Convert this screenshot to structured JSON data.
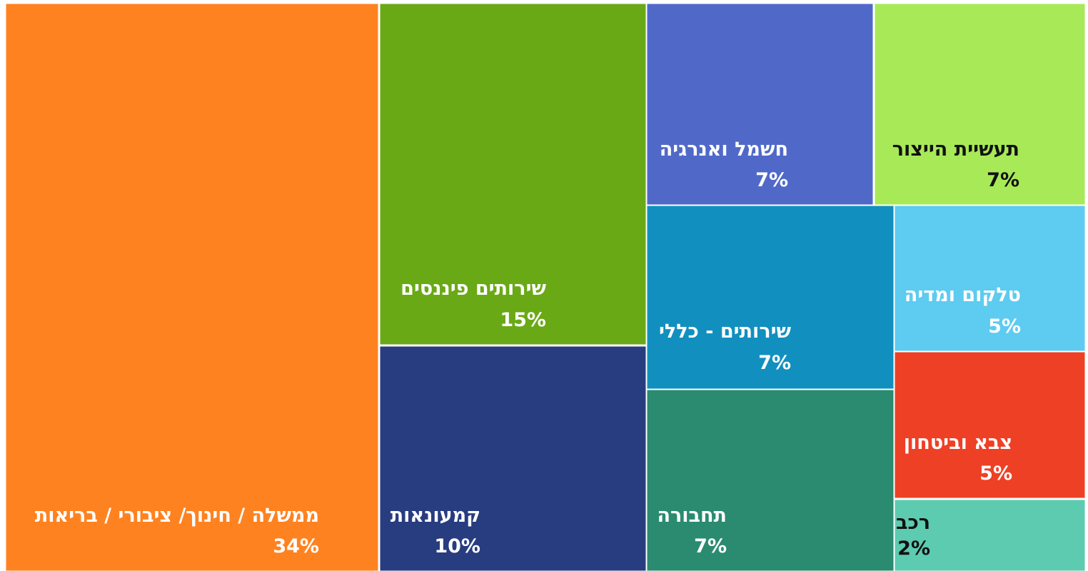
{
  "chart_data": {
    "type": "treemap",
    "categories": [
      "ממשלה / חינוך/ ציבורי / בריאות",
      "שירותים פיננסים",
      "קמעונאות",
      "חשמל ואנרגיה",
      "תעשיית הייצור",
      "שירותים - כללי",
      "תחבורה",
      "טלקום ומדיה",
      "צבא וביטחון",
      "רכב"
    ],
    "values": [
      34,
      15,
      10,
      7,
      7,
      7,
      7,
      5,
      5,
      2
    ],
    "value_labels": [
      "34%",
      "15%",
      "10%",
      "7%",
      "7%",
      "7%",
      "7%",
      "5%",
      "5%",
      "2%"
    ],
    "colors": [
      "#ff8220",
      "#6aa916",
      "#283c80",
      "#5069c9",
      "#a8e957",
      "#1190bf",
      "#2a8b70",
      "#5ecbf0",
      "#ee4025",
      "#5dcbb0"
    ]
  }
}
